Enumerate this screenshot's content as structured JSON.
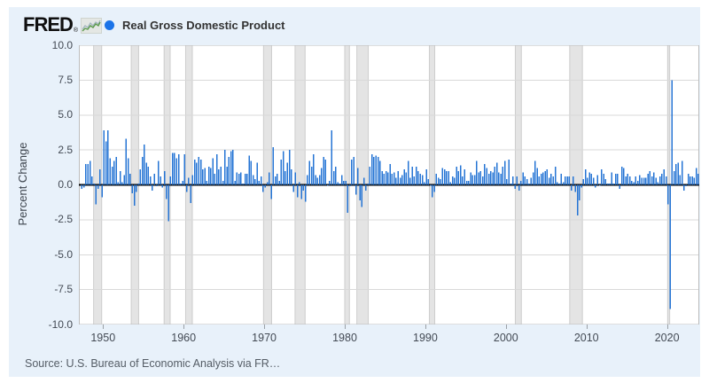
{
  "header": {
    "logo_text": "FRED",
    "registered_mark": "®",
    "legend": {
      "marker_color": "#1a73e8",
      "label": "Real Gross Domestic Product"
    }
  },
  "y_axis": {
    "title": "Percent Change",
    "tick_labels": [
      "10.0",
      "7.5",
      "5.0",
      "2.5",
      "0.0",
      "-2.5",
      "-5.0",
      "-7.5",
      "-10.0"
    ]
  },
  "x_axis": {
    "tick_labels": [
      "1950",
      "1960",
      "1970",
      "1980",
      "1990",
      "2000",
      "2010",
      "2020"
    ]
  },
  "footer": {
    "source_text": "Source: U.S. Bureau of Economic Analysis via FR…"
  },
  "chart_data": {
    "type": "bar",
    "title": "Real Gross Domestic Product",
    "ylabel": "Percent Change",
    "frequency": "quarterly",
    "x_range": [
      1947,
      2024
    ],
    "ylim": [
      -10,
      10
    ],
    "y_tick_step": 2.5,
    "grid": true,
    "legend_position": "top",
    "bar_color": "#2574d4",
    "zero_line_color": "#000000",
    "grid_color": "#d9d9d9",
    "plot_border_color": "#bdbdbd",
    "recession_color": "#e4e4e4",
    "recession_edge_color": "#cdcdcd",
    "start_year": 1947,
    "start_quarter": 2,
    "values": [
      -0.3,
      -0.2,
      1.5,
      1.5,
      1.7,
      0.6,
      0.1,
      -1.4,
      -0.3,
      1.1,
      -0.9,
      3.9,
      3.1,
      3.9,
      1.9,
      1.3,
      1.7,
      2.0,
      0.2,
      1.0,
      0.2,
      0.7,
      3.3,
      1.9,
      0.8,
      -0.6,
      -1.5,
      -0.5,
      0.1,
      1.1,
      2.0,
      2.9,
      1.6,
      1.3,
      0.6,
      -0.4,
      0.8,
      -0.1,
      1.7,
      0.6,
      -0.2,
      1.0,
      -1.0,
      -2.6,
      0.6,
      2.3,
      2.3,
      1.9,
      2.2,
      0.1,
      0.3,
      2.2,
      -0.5,
      0.5,
      -1.3,
      0.7,
      1.8,
      1.6,
      2.0,
      1.8,
      1.1,
      1.2,
      0.3,
      1.3,
      1.2,
      1.9,
      0.8,
      2.2,
      1.1,
      1.3,
      0.3,
      2.5,
      1.3,
      2.0,
      2.4,
      2.5,
      0.3,
      0.9,
      0.8,
      0.9,
      0.1,
      0.8,
      0.8,
      2.1,
      1.7,
      0.7,
      0.4,
      1.6,
      0.3,
      0.6,
      -0.5,
      -0.2,
      0.2,
      0.9,
      -1.0,
      2.7,
      0.6,
      0.8,
      0.3,
      1.8,
      2.4,
      1.0,
      1.6,
      2.5,
      1.1,
      -0.5,
      0.9,
      -0.9,
      0.2,
      -1.0,
      -0.4,
      -1.2,
      0.7,
      1.7,
      1.3,
      2.2,
      0.7,
      0.5,
      0.7,
      1.2,
      2.0,
      1.8,
      0.0,
      0.3,
      3.9,
      1.0,
      1.3,
      0.2,
      0.1,
      0.7,
      0.3,
      0.3,
      -2.0,
      -0.1,
      1.8,
      2.0,
      -0.7,
      1.2,
      -1.1,
      -1.6,
      0.5,
      -0.4,
      0.1,
      1.3,
      2.2,
      2.0,
      2.1,
      2.0,
      1.7,
      1.0,
      0.8,
      1.0,
      0.9,
      1.5,
      0.8,
      0.9,
      0.5,
      1.0,
      0.5,
      0.7,
      1.1,
      0.9,
      1.7,
      0.5,
      1.3,
      0.6,
      1.3,
      1.0,
      0.8,
      0.7,
      0.2,
      1.1,
      0.4,
      0.0,
      -0.9,
      -0.5,
      0.8,
      0.5,
      0.4,
      1.2,
      1.1,
      1.0,
      1.0,
      0.2,
      0.6,
      0.5,
      1.3,
      1.0,
      1.4,
      0.6,
      1.1,
      0.3,
      0.3,
      0.9,
      0.7,
      0.7,
      1.7,
      0.9,
      1.0,
      0.6,
      1.5,
      1.2,
      0.8,
      1.0,
      0.9,
      1.3,
      1.6,
      0.9,
      0.8,
      1.3,
      1.7,
      0.4,
      1.8,
      0.1,
      0.6,
      -0.3,
      0.6,
      -0.4,
      0.3,
      0.9,
      0.6,
      0.4,
      0.1,
      0.5,
      0.9,
      1.7,
      1.2,
      0.6,
      0.8,
      0.9,
      1.0,
      1.1,
      0.5,
      0.8,
      0.6,
      1.3,
      0.2,
      0.1,
      0.8,
      0.2,
      0.6,
      0.6,
      0.6,
      -0.4,
      0.6,
      -0.5,
      -2.2,
      -1.1,
      -0.2,
      0.4,
      1.1,
      0.5,
      0.9,
      0.8,
      0.5,
      -0.2,
      0.7,
      0.0,
      1.1,
      0.8,
      0.4,
      0.1,
      0.1,
      0.9,
      0.1,
      0.8,
      0.8,
      -0.3,
      1.3,
      1.2,
      0.6,
      0.8,
      0.6,
      0.3,
      0.2,
      0.6,
      0.3,
      0.7,
      0.5,
      0.5,
      0.5,
      0.8,
      1.0,
      0.6,
      0.9,
      0.5,
      0.2,
      0.6,
      0.8,
      1.1,
      0.6,
      -1.4,
      -8.9,
      7.5,
      1.0,
      1.5,
      1.6,
      0.7,
      1.7,
      -0.4,
      -0.1,
      0.8,
      0.6,
      0.6,
      0.5,
      1.2,
      0.8
    ],
    "recessions": [
      [
        1948.83,
        1949.83
      ],
      [
        1953.5,
        1954.42
      ],
      [
        1957.58,
        1958.33
      ],
      [
        1960.25,
        1961.08
      ],
      [
        1969.92,
        1970.92
      ],
      [
        1973.83,
        1975.08
      ],
      [
        1980.0,
        1980.58
      ],
      [
        1981.5,
        1982.92
      ],
      [
        1990.5,
        1991.17
      ],
      [
        2001.17,
        2001.92
      ],
      [
        2007.92,
        2009.5
      ],
      [
        2020.08,
        2020.33
      ]
    ]
  }
}
